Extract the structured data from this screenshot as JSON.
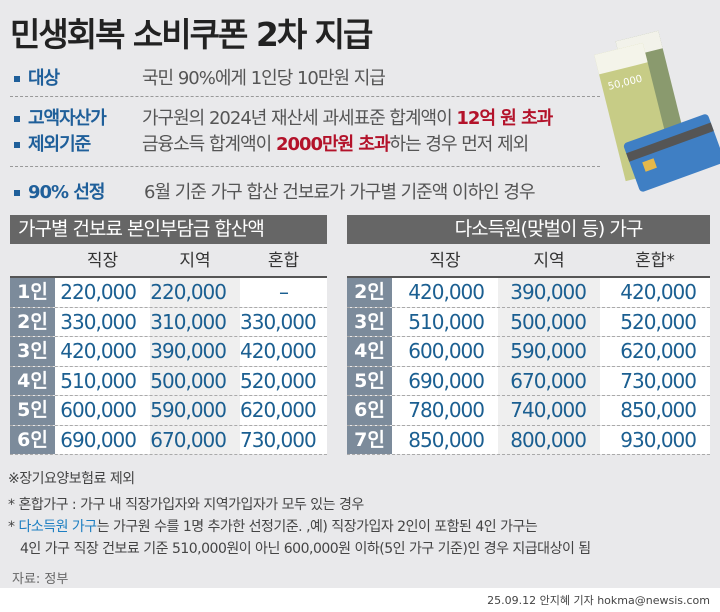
{
  "title": "민생회복 소비쿠폰 2차 지급",
  "criteria": [
    {
      "label": "대상",
      "lines": [
        "국민 90%에게 1인당 10만원 지급"
      ]
    },
    {
      "label": "고액자산가",
      "label2": "제외기준",
      "line1a": "가구원의 2024년 재산세 과세표준 합계액이 ",
      "line1b": "12억 원 초과",
      "line2a": "금융소득 합계액이 ",
      "line2b": "2000만원 초과",
      "line2c": "하는 경우 먼저 제외"
    },
    {
      "label": "90% 선정",
      "lines": [
        "6월 기준 가구 합산 건보료가 가구별 기준액 이하인 경우"
      ]
    }
  ],
  "illustration": {
    "banknote_label": "50,000"
  },
  "table_left": {
    "title": "가구별 건보료 본인부담금 합산액",
    "columns": [
      "직장",
      "지역",
      "혼합"
    ],
    "rows": [
      {
        "label": "1인",
        "values": [
          "220,000",
          "220,000",
          "–"
        ]
      },
      {
        "label": "2인",
        "values": [
          "330,000",
          "310,000",
          "330,000"
        ]
      },
      {
        "label": "3인",
        "values": [
          "420,000",
          "390,000",
          "420,000"
        ]
      },
      {
        "label": "4인",
        "values": [
          "510,000",
          "500,000",
          "520,000"
        ]
      },
      {
        "label": "5인",
        "values": [
          "600,000",
          "590,000",
          "620,000"
        ]
      },
      {
        "label": "6인",
        "values": [
          "690,000",
          "670,000",
          "730,000"
        ]
      }
    ]
  },
  "table_right": {
    "title": "다소득원(맞벌이 등) 가구",
    "columns": [
      "직장",
      "지역",
      "혼합*"
    ],
    "rows": [
      {
        "label": "2인",
        "values": [
          "420,000",
          "390,000",
          "420,000"
        ]
      },
      {
        "label": "3인",
        "values": [
          "510,000",
          "500,000",
          "520,000"
        ]
      },
      {
        "label": "4인",
        "values": [
          "600,000",
          "590,000",
          "620,000"
        ]
      },
      {
        "label": "5인",
        "values": [
          "690,000",
          "670,000",
          "730,000"
        ]
      },
      {
        "label": "6인",
        "values": [
          "780,000",
          "740,000",
          "850,000"
        ]
      },
      {
        "label": "7인",
        "values": [
          "850,000",
          "800,000",
          "930,000"
        ]
      }
    ]
  },
  "notes": {
    "n1": "※장기요양보험료 제외",
    "n2": "* 혼합가구 : 가구 내 직장가입자와 지역가입자가 모두 있는 경우",
    "n3a": "* ",
    "n3b": "다소득원 가구",
    "n3c": "는 가구원 수를 1명 추가한 선정기준. ,예) 직장가입자 2인이 포함된 4인 가구는",
    "n4": "4인 가구 직장 건보료 기준 510,000원이 아닌 600,000원 이하(5인 가구 기준)인 경우 지급대상이 됨"
  },
  "source": "자료: 정부",
  "credit": "25.09.12 안지혜 기자 hokma@newsis.com",
  "colors": {
    "accent_blue": "#1f5f9a",
    "highlight_red": "#b3122a",
    "row_label_bg": "#7c8b9b",
    "header_bar": "#666666"
  }
}
